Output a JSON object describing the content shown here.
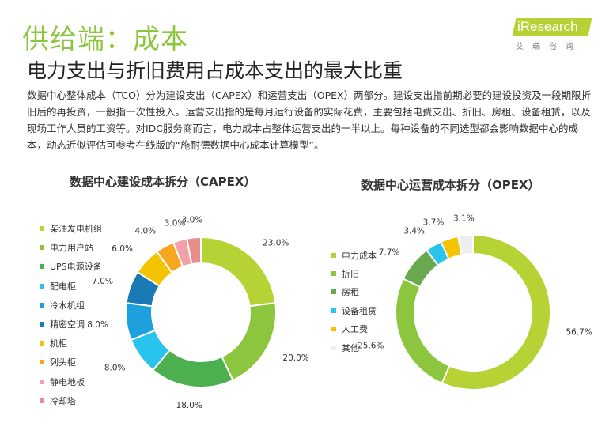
{
  "header": {
    "section_title": "供给端：成本",
    "headline": "电力支出与折旧费用占成本支出的最大比重",
    "logo_text": "iResearch",
    "logo_sub": "艾瑞咨询"
  },
  "body_text": "数据中心整体成本（TCO）分为建设支出（CAPEX）和运营支出（OPEX）两部分。建设支出指前期必要的建设投资及一段期限折旧后的再投资，一般指一次性投入。运营支出指的是每月运行设备的实际花费，主要包括电费支出、折旧、房租、设备租赁，以及现场工作人员的工资等。对IDC服务商而言，电力成本占整体运营支出的一半以上。每种设备的不同选型都会影响数据中心的成本，动态近似评估可参考在线版的“施耐德数据中心成本计算模型”。",
  "chart_data": [
    {
      "type": "pie",
      "title": "数据中心建设成本拆分（CAPEX）",
      "categories": [
        "柴油发电机组",
        "电力用户站",
        "UPS电源设备",
        "配电柜",
        "冷水机组",
        "精密空调",
        "机柜",
        "列头柜",
        "静电地板",
        "冷却塔"
      ],
      "values": [
        23.0,
        20.0,
        18.0,
        8.0,
        8.0,
        7.0,
        6.0,
        4.0,
        3.0,
        3.0
      ],
      "value_labels": [
        "23.0%",
        "20.0%",
        "18.0%",
        "8.0%",
        "8.0%",
        "7.0%",
        "6.0%",
        "4.0%",
        "3.0%",
        "3.0%"
      ],
      "colors": [
        "#b5d334",
        "#8cc63f",
        "#4caf50",
        "#29c4ee",
        "#1ea0dc",
        "#1a7ab5",
        "#f5c400",
        "#f5a81f",
        "#f4a0a8",
        "#e88c8c"
      ],
      "legend_position": "left"
    },
    {
      "type": "pie",
      "title": "数据中心运营成本拆分（OPEX）",
      "categories": [
        "电力成本",
        "折旧",
        "房租",
        "设备租赁",
        "人工费",
        "其他"
      ],
      "values": [
        56.7,
        25.6,
        7.7,
        3.4,
        3.7,
        3.1
      ],
      "value_labels": [
        "56.7%",
        "25.6%",
        "7.7%",
        "3.4%",
        "3.7%",
        "3.1%"
      ],
      "colors": [
        "#b5d334",
        "#8cc63f",
        "#6aa84f",
        "#29c4ee",
        "#f5c400",
        "#eeeeee"
      ],
      "legend_position": "left"
    }
  ]
}
